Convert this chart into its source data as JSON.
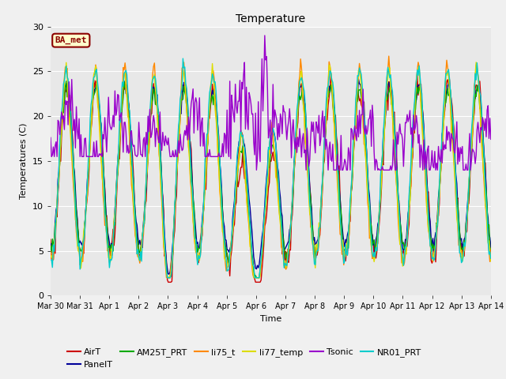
{
  "title": "Temperature",
  "ylabel": "Temperatures (C)",
  "xlabel": "Time",
  "ylim": [
    0,
    30
  ],
  "xlim": [
    0,
    15
  ],
  "fig_bg_color": "#f0f0f0",
  "plot_bg_color": "#e8e8e8",
  "annotation_text": "BA_met",
  "annotation_color": "#8b0000",
  "annotation_bg": "#ffffcc",
  "series_colors": {
    "AirT": "#cc0000",
    "PanelT": "#000099",
    "AM25T_PRT": "#00aa00",
    "li75_t": "#ff8800",
    "li77_temp": "#dddd00",
    "Tsonic": "#9900cc",
    "NR01_PRT": "#00cccc"
  },
  "legend_order": [
    "AirT",
    "PanelT",
    "AM25T_PRT",
    "li75_t",
    "li77_temp",
    "Tsonic",
    "NR01_PRT"
  ],
  "xtick_labels": [
    "Mar 30",
    "Mar 31",
    "Apr 1",
    "Apr 2",
    "Apr 3",
    "Apr 4",
    "Apr 5",
    "Apr 6",
    "Apr 7",
    "Apr 8",
    "Apr 9",
    "Apr 10",
    "Apr 11",
    "Apr 12",
    "Apr 13",
    "Apr 14"
  ],
  "ytick_vals": [
    0,
    5,
    10,
    15,
    20,
    25,
    30
  ],
  "grid_color": "#ffffff",
  "linewidth": 1.0
}
